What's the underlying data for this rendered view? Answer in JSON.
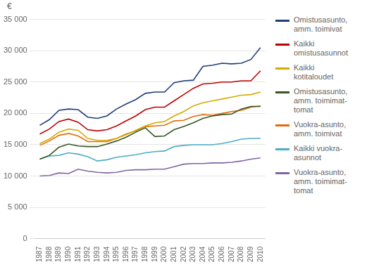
{
  "chart_data": {
    "type": "line",
    "x": [
      1987,
      1988,
      1989,
      1990,
      1991,
      1992,
      1993,
      1994,
      1995,
      1996,
      1997,
      1998,
      1999,
      2000,
      2001,
      2002,
      2003,
      2004,
      2005,
      2006,
      2007,
      2008,
      2009,
      2010
    ],
    "series": [
      {
        "name": "Omistusasunto,\namm. toimivat",
        "color": "#1f3d7a",
        "values": [
          18100,
          19000,
          20500,
          20700,
          20600,
          19400,
          19200,
          19600,
          20700,
          21500,
          22200,
          23200,
          23400,
          23400,
          24900,
          25200,
          25300,
          27500,
          27700,
          28000,
          27900,
          28000,
          28600,
          30500
        ]
      },
      {
        "name": "Kaikki\nomistusasunnot",
        "color": "#c00000",
        "values": [
          16700,
          17500,
          18700,
          19100,
          18600,
          17400,
          17200,
          17400,
          18000,
          18800,
          19600,
          20600,
          21000,
          21000,
          22000,
          23000,
          24000,
          24700,
          24800,
          25000,
          25000,
          25200,
          25200,
          26800
        ]
      },
      {
        "name": "Kaikki\nkotitaloudet",
        "color": "#d4aa00",
        "values": [
          15200,
          15900,
          17000,
          17500,
          17300,
          16000,
          15700,
          15700,
          16000,
          16600,
          17300,
          18000,
          18500,
          18700,
          19600,
          20300,
          21200,
          21700,
          22000,
          22300,
          22600,
          22900,
          23000,
          23400
        ]
      },
      {
        "name": "Omistusasunto,\namm. toimimat-\ntomat",
        "color": "#375623",
        "values": [
          12700,
          13300,
          14600,
          15100,
          14800,
          14700,
          14700,
          15100,
          15600,
          16200,
          17000,
          17700,
          16300,
          16400,
          17400,
          17900,
          18500,
          19200,
          19600,
          19800,
          19900,
          20700,
          21100,
          21100
        ]
      },
      {
        "name": "Vuokra-asunto,\namm. toimivat",
        "color": "#e36c09",
        "values": [
          14900,
          15600,
          16500,
          16800,
          16400,
          15500,
          15500,
          15500,
          16000,
          16700,
          17200,
          17900,
          18000,
          18100,
          18800,
          18900,
          19500,
          19800,
          19700,
          20000,
          20300,
          20500,
          21000,
          21200
        ]
      },
      {
        "name": "Kaikki vuokra-\nasunnot",
        "color": "#4bacc6",
        "values": [
          12700,
          13200,
          13300,
          13700,
          13500,
          13100,
          12400,
          12600,
          13000,
          13200,
          13400,
          13700,
          13900,
          14000,
          14700,
          14900,
          15000,
          15000,
          15000,
          15200,
          15500,
          15900,
          16000,
          16000
        ]
      },
      {
        "name": "Vuokra-asunto,\namm. toimimat-\ntomat",
        "color": "#8064a2",
        "values": [
          10000,
          10100,
          10500,
          10400,
          11100,
          10800,
          10600,
          10500,
          10600,
          10900,
          11000,
          11000,
          11100,
          11100,
          11500,
          11900,
          12000,
          12000,
          12100,
          12100,
          12200,
          12400,
          12700,
          12900
        ]
      }
    ],
    "xlim": [
      1986.5,
      2010.5
    ],
    "xticks": [
      1987,
      1988,
      1989,
      1990,
      1991,
      1992,
      1993,
      1994,
      1995,
      1996,
      1997,
      1998,
      1999,
      2000,
      2001,
      2002,
      2003,
      2004,
      2005,
      2006,
      2007,
      2008,
      2009,
      2010
    ],
    "ylim": [
      0,
      35000
    ],
    "yticks": [
      0,
      {
        "value": 5000,
        "label": "5 000"
      },
      {
        "value": 10000,
        "label": "10 000"
      },
      {
        "value": 15000,
        "label": "15 000"
      },
      {
        "value": 20000,
        "label": "20 000"
      },
      {
        "value": 25000,
        "label": "25 000"
      },
      {
        "value": 30000,
        "label": "30 000"
      },
      {
        "value": 35000,
        "label": "35 000"
      }
    ],
    "ylabel": "€",
    "grid": "y",
    "legend": "right"
  }
}
